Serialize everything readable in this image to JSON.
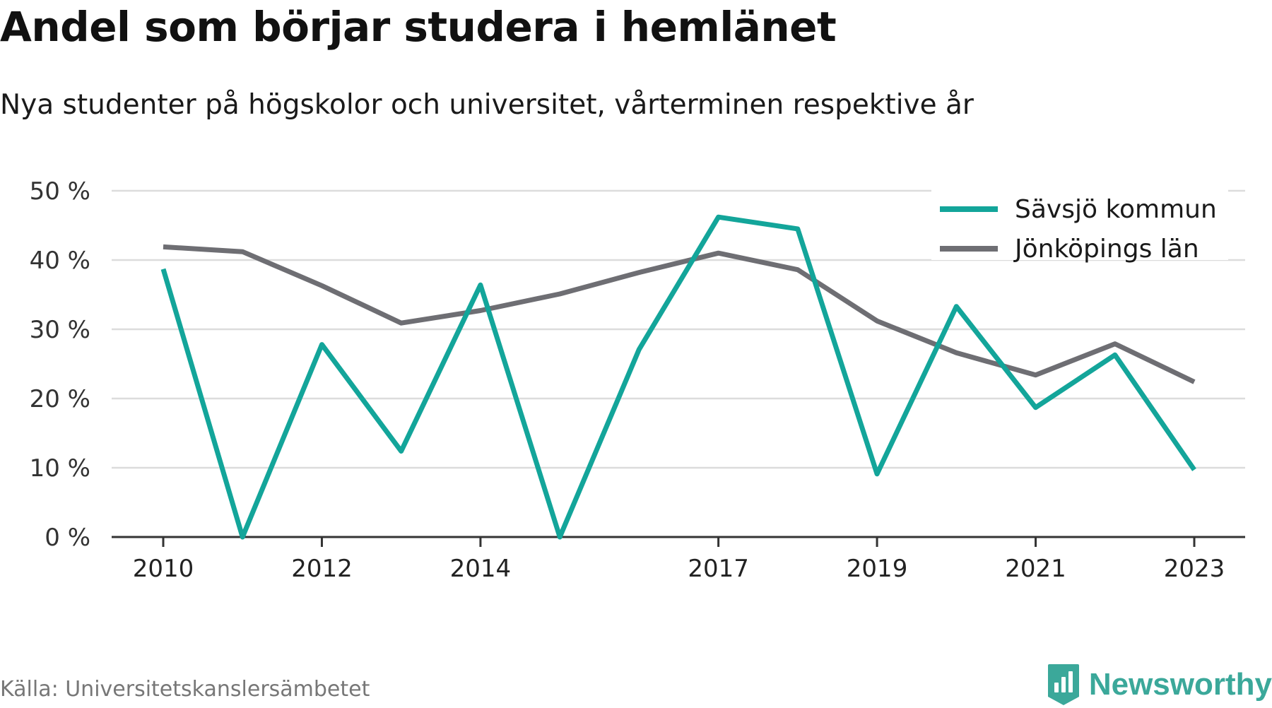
{
  "title": "Andel som börjar studera i hemlänet",
  "subtitle": "Nya studenter på högskolor och universitet, vårterminen respektive år",
  "source": "Källa: Universitetskanslersämbetet",
  "brand": "Newsworthy",
  "chart_data": {
    "type": "line",
    "x": [
      2010,
      2011,
      2012,
      2013,
      2014,
      2015,
      2016,
      2017,
      2018,
      2019,
      2020,
      2021,
      2022,
      2023
    ],
    "x_ticks": [
      2010,
      2012,
      2014,
      2017,
      2019,
      2021,
      2023
    ],
    "x_tick_labels": [
      "2010",
      "2012",
      "2014",
      "2017",
      "2019",
      "2021",
      "2023"
    ],
    "y_ticks": [
      0,
      10,
      20,
      30,
      40,
      50
    ],
    "y_tick_labels": [
      "0 %",
      "10 %",
      "20 %",
      "30 %",
      "40 %",
      "50 %"
    ],
    "ylim": [
      0,
      50
    ],
    "grid": true,
    "legend_position": "top-right",
    "series": [
      {
        "name": "Sävsjö kommun",
        "color": "#13a59a",
        "values": [
          38.7,
          0,
          27.8,
          12.4,
          36.4,
          0,
          27.1,
          46.2,
          44.5,
          9.1,
          33.3,
          18.7,
          26.3,
          9.7
        ]
      },
      {
        "name": "Jönköpings län",
        "color": "#6e6e73",
        "values": [
          41.9,
          41.2,
          36.3,
          30.9,
          32.7,
          35.1,
          38.2,
          41.0,
          38.6,
          31.2,
          26.6,
          23.4,
          27.9,
          22.4
        ]
      }
    ]
  }
}
